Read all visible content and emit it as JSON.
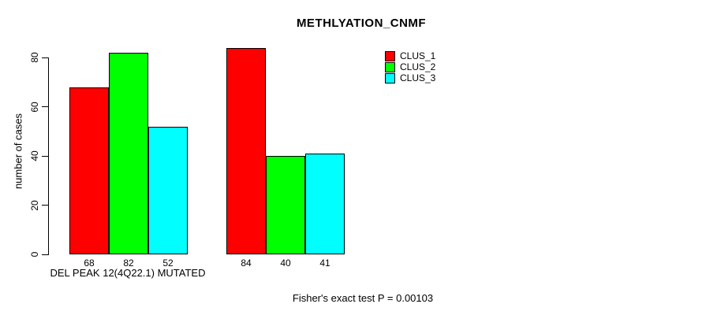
{
  "page": {
    "background_color": "#FFFFFF",
    "text_color": "#000000"
  },
  "chart_data": {
    "type": "bar",
    "title": "METHLYATION_CNMF",
    "ylabel": "number of cases",
    "xlabel": "DEL PEAK 12(4Q22.1) MUTATED",
    "annotation": "Fisher's exact test P = 0.00103",
    "yticks": [
      0,
      20,
      40,
      60,
      80
    ],
    "ylim": [
      0,
      80
    ],
    "grid": false,
    "bar_value_labels_shown": true,
    "legend_position": "top-right",
    "num_groups": 2,
    "series": [
      {
        "name": "CLUS_1",
        "color": "#FF0000",
        "values": [
          68,
          84
        ]
      },
      {
        "name": "CLUS_2",
        "color": "#00FF00",
        "values": [
          82,
          40
        ]
      },
      {
        "name": "CLUS_3",
        "color": "#00FFFF",
        "values": [
          52,
          41
        ]
      }
    ]
  }
}
